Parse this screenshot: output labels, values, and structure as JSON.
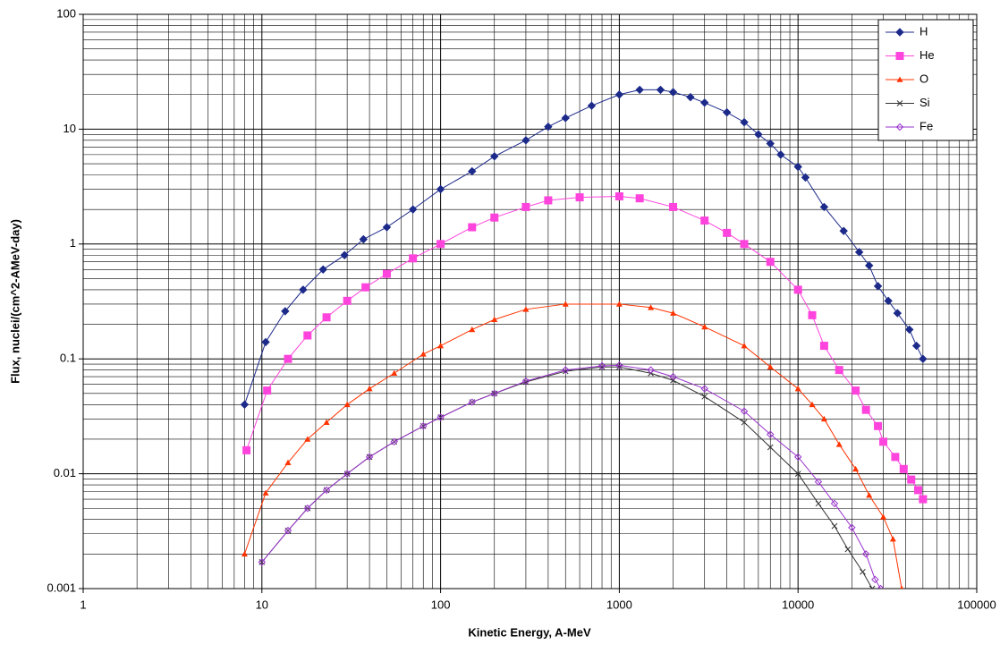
{
  "chart_data": {
    "type": "line",
    "log_x": true,
    "log_y": true,
    "grid": true,
    "minor_grid": true,
    "legend": "upper right",
    "xlabel": "Kinetic Energy, A-MeV",
    "ylabel": "Flux,  nuclei/(cm^2-AMeV-day)",
    "xlim": [
      1,
      100000
    ],
    "xticks": [
      1,
      10,
      100,
      1000,
      10000,
      100000
    ],
    "ylim": [
      0.001,
      100
    ],
    "yticks": [
      0.001,
      0.01,
      0.1,
      1,
      10,
      100
    ],
    "series": [
      {
        "name": "H",
        "color": "#1c2a8a",
        "marker": "diamond",
        "x": [
          8,
          10.5,
          13.5,
          17,
          22,
          29,
          37,
          50,
          70,
          100,
          150,
          200,
          300,
          400,
          500,
          700,
          1000,
          1300,
          1700,
          2000,
          2500,
          3000,
          4000,
          5000,
          6000,
          7000,
          8000,
          10000,
          11000,
          14000,
          18000,
          22000,
          25000,
          28000,
          32000,
          36000,
          42000,
          46000,
          50000
        ],
        "values": [
          0.04,
          0.14,
          0.26,
          0.4,
          0.6,
          0.8,
          1.1,
          1.4,
          2,
          3,
          4.3,
          5.8,
          8,
          10.5,
          12.5,
          16,
          20,
          22,
          22,
          21,
          19,
          17,
          14,
          11.5,
          9,
          7.5,
          6,
          4.7,
          3.8,
          2.1,
          1.3,
          0.85,
          0.65,
          0.43,
          0.32,
          0.25,
          0.18,
          0.13,
          0.1
        ]
      },
      {
        "name": "He",
        "color": "#ff44dd",
        "marker": "square",
        "x": [
          8.2,
          10.7,
          14,
          18,
          23,
          30,
          38,
          50,
          70,
          100,
          150,
          200,
          300,
          400,
          600,
          1000,
          1300,
          2000,
          3000,
          4000,
          5000,
          7000,
          10000,
          12000,
          14000,
          17000,
          21000,
          24000,
          28000,
          30000,
          35000,
          39000,
          43000,
          47000,
          50000
        ],
        "values": [
          0.016,
          0.053,
          0.1,
          0.16,
          0.23,
          0.32,
          0.42,
          0.55,
          0.75,
          1.0,
          1.4,
          1.7,
          2.1,
          2.4,
          2.55,
          2.6,
          2.5,
          2.1,
          1.6,
          1.25,
          1.0,
          0.7,
          0.4,
          0.24,
          0.13,
          0.08,
          0.053,
          0.036,
          0.026,
          0.019,
          0.014,
          0.011,
          0.0089,
          0.0072,
          0.006
        ]
      },
      {
        "name": "O",
        "color": "#ff3300",
        "marker": "triangle",
        "x": [
          8,
          10.5,
          14,
          18,
          23,
          30,
          40,
          55,
          80,
          100,
          150,
          200,
          300,
          500,
          1000,
          1500,
          2000,
          3000,
          5000,
          7000,
          10000,
          12000,
          14000,
          17000,
          21000,
          25000,
          30000,
          34000,
          38000
        ],
        "values": [
          0.002,
          0.0068,
          0.0125,
          0.02,
          0.028,
          0.04,
          0.055,
          0.075,
          0.11,
          0.13,
          0.18,
          0.22,
          0.27,
          0.3,
          0.3,
          0.28,
          0.25,
          0.19,
          0.13,
          0.085,
          0.055,
          0.04,
          0.03,
          0.018,
          0.011,
          0.0065,
          0.0042,
          0.0027,
          0.001
        ]
      },
      {
        "name": "Si",
        "color": "#333333",
        "marker": "x",
        "x": [
          10,
          14,
          18,
          23,
          30,
          40,
          55,
          80,
          100,
          150,
          200,
          300,
          500,
          800,
          1000,
          1500,
          2000,
          3000,
          5000,
          7000,
          10000,
          13000,
          16000,
          19000,
          23000,
          26000
        ],
        "values": [
          0.0017,
          0.0032,
          0.005,
          0.0072,
          0.01,
          0.014,
          0.019,
          0.026,
          0.031,
          0.042,
          0.05,
          0.063,
          0.078,
          0.085,
          0.085,
          0.075,
          0.065,
          0.047,
          0.028,
          0.017,
          0.01,
          0.0055,
          0.0035,
          0.0022,
          0.0014,
          0.001
        ]
      },
      {
        "name": "Fe",
        "color": "#9933cc",
        "marker": "open-diamond",
        "x": [
          10,
          14,
          18,
          23,
          30,
          40,
          55,
          80,
          100,
          150,
          200,
          300,
          500,
          800,
          1000,
          1500,
          2000,
          3000,
          5000,
          7000,
          10000,
          13000,
          16000,
          20000,
          24000,
          27000,
          29000
        ],
        "values": [
          0.0017,
          0.0032,
          0.005,
          0.0072,
          0.01,
          0.014,
          0.019,
          0.026,
          0.031,
          0.042,
          0.05,
          0.064,
          0.08,
          0.087,
          0.088,
          0.08,
          0.07,
          0.055,
          0.035,
          0.022,
          0.014,
          0.0085,
          0.0055,
          0.0034,
          0.002,
          0.0012,
          0.001
        ]
      }
    ]
  }
}
